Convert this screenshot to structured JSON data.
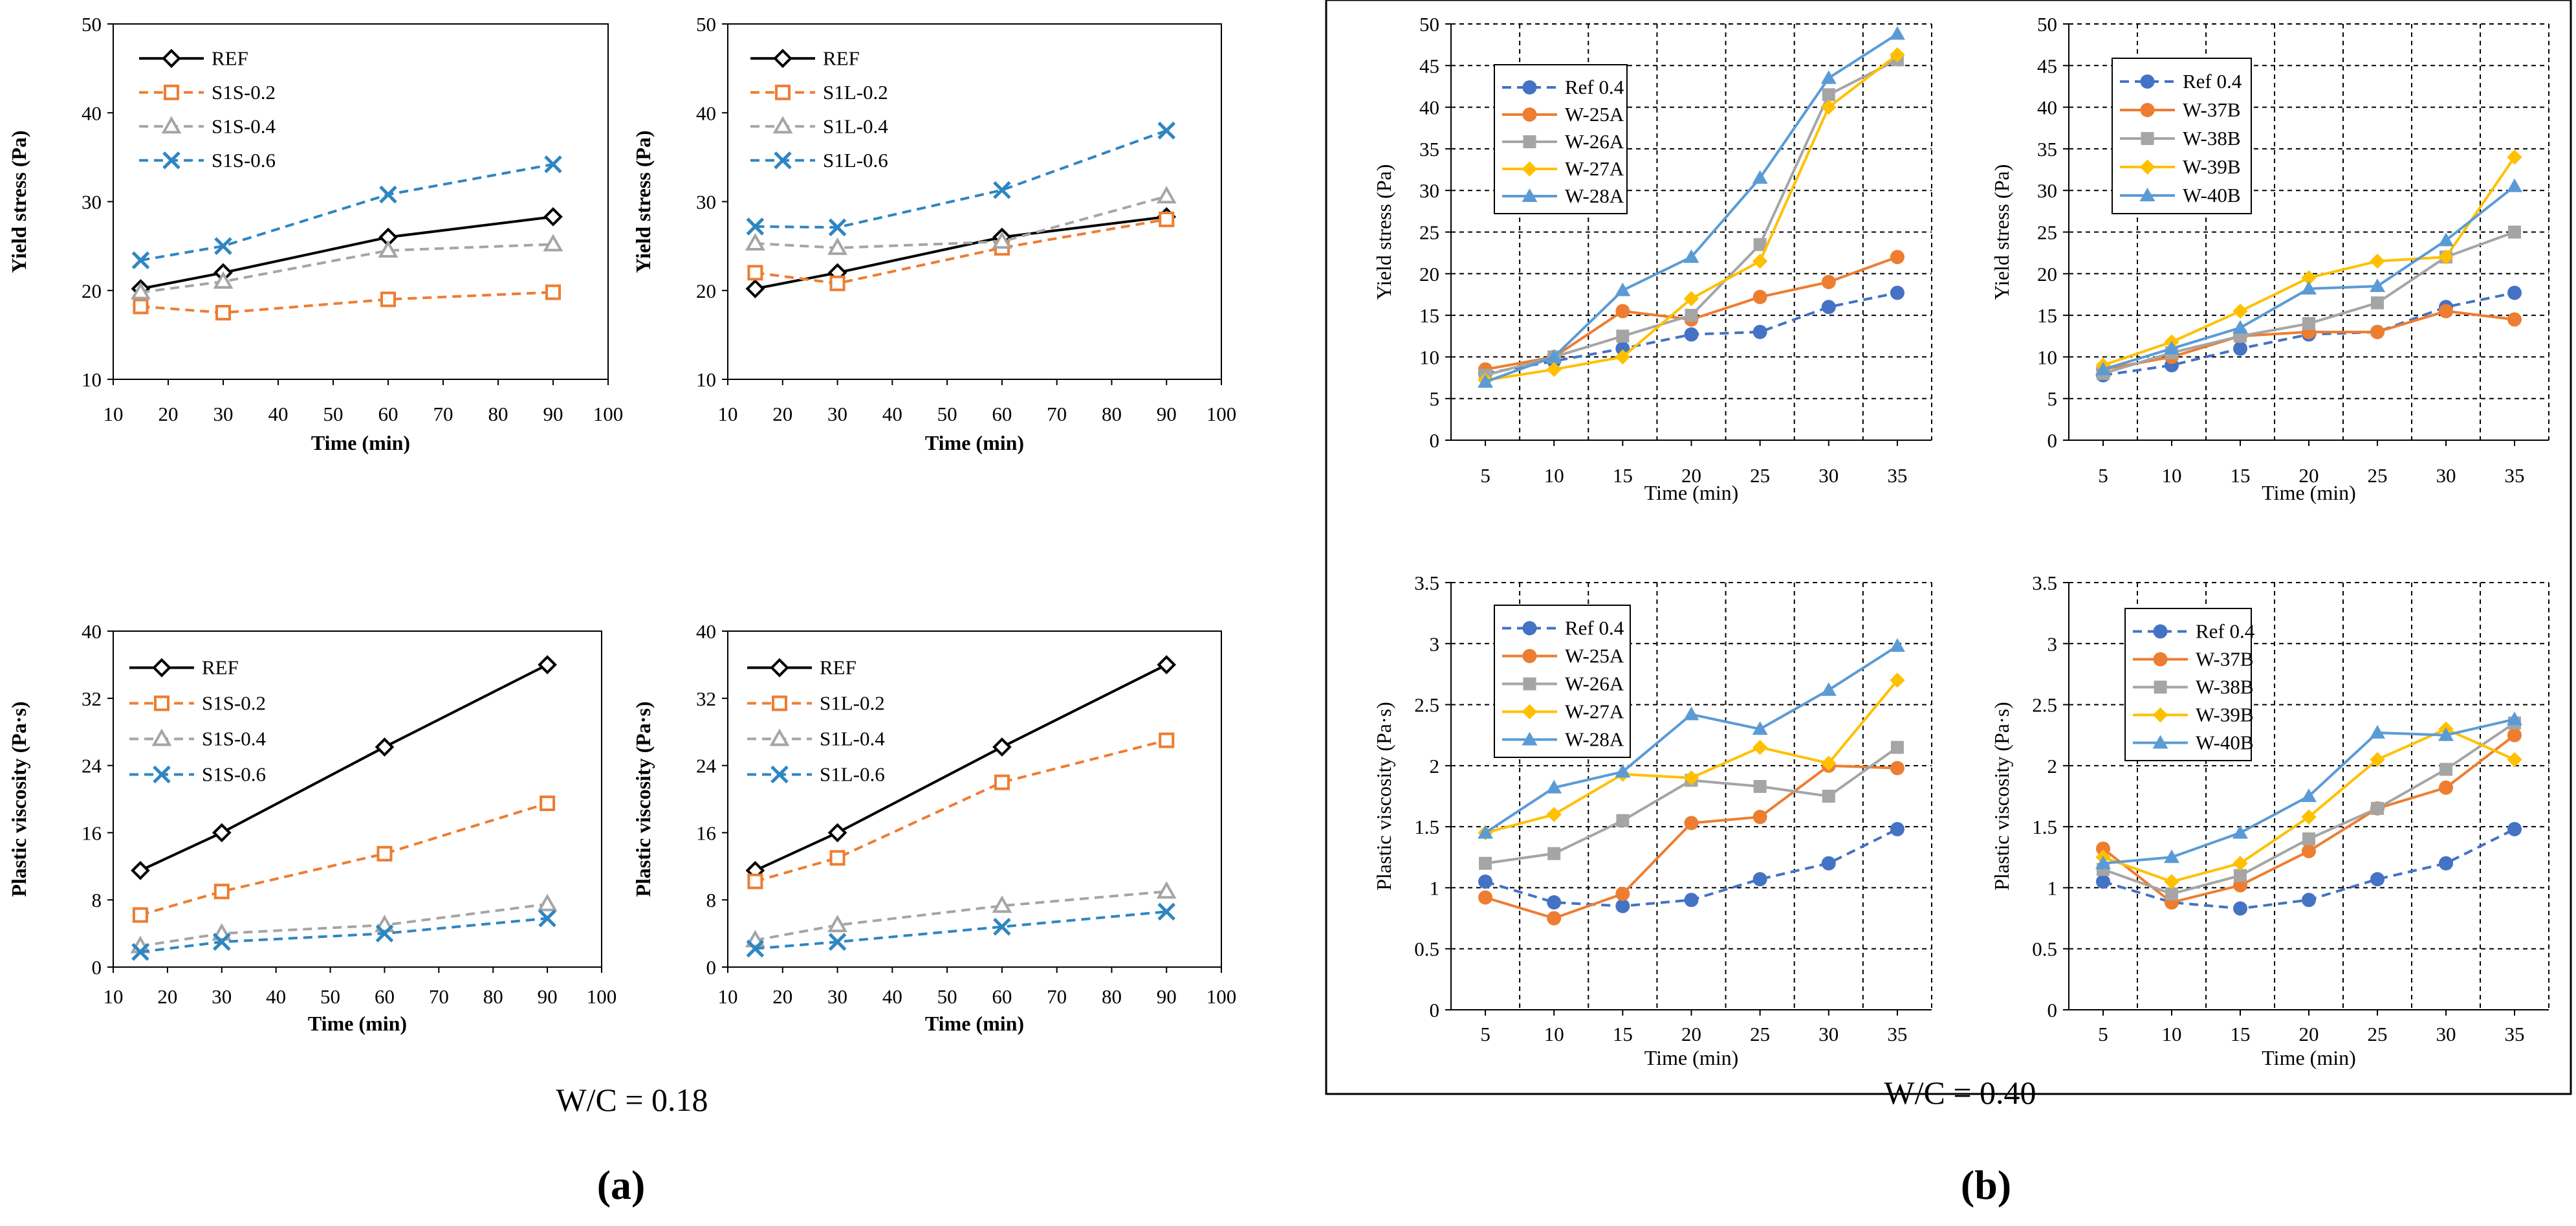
{
  "chart_data": [
    {
      "type": "line",
      "panel_id": "a-ys-s1s",
      "title": "",
      "xlabel": "Time (min)",
      "ylabel": "Yield stress (Pa)",
      "xlim": [
        10,
        100
      ],
      "ylim": [
        10,
        50
      ],
      "xticks": [
        "10",
        "20",
        "30",
        "40",
        "50",
        "60",
        "70",
        "80",
        "90",
        "100"
      ],
      "yticks": [
        "10",
        "20",
        "30",
        "40",
        "50"
      ],
      "grid": false,
      "legend_position": "top-left",
      "x": [
        15,
        30,
        60,
        90
      ],
      "series": [
        {
          "name": "REF",
          "values": [
            20.2,
            22.0,
            26.0,
            28.3
          ],
          "color": "#000000",
          "dash": "solid",
          "marker": "diamond"
        },
        {
          "name": "S1S-0.2",
          "values": [
            18.2,
            17.5,
            19.0,
            19.8
          ],
          "color": "#ed7d31",
          "dash": "dashed",
          "marker": "square"
        },
        {
          "name": "S1S-0.4",
          "values": [
            19.8,
            21.0,
            24.5,
            25.2
          ],
          "color": "#a5a5a5",
          "dash": "dashed",
          "marker": "triangle"
        },
        {
          "name": "S1S-0.6",
          "values": [
            23.4,
            25.0,
            30.8,
            34.2
          ],
          "color": "#2e86c1",
          "dash": "dashed",
          "marker": "x"
        }
      ]
    },
    {
      "type": "line",
      "panel_id": "a-ys-s1l",
      "title": "",
      "xlabel": "Time (min)",
      "ylabel": "Yield stress (Pa)",
      "xlim": [
        10,
        100
      ],
      "ylim": [
        10,
        50
      ],
      "xticks": [
        "10",
        "20",
        "30",
        "40",
        "50",
        "60",
        "70",
        "80",
        "90",
        "100"
      ],
      "yticks": [
        "10",
        "20",
        "30",
        "40",
        "50"
      ],
      "grid": false,
      "legend_position": "top-left",
      "x": [
        15,
        30,
        60,
        90
      ],
      "series": [
        {
          "name": "REF",
          "values": [
            20.2,
            22.0,
            26.0,
            28.3
          ],
          "color": "#000000",
          "dash": "solid",
          "marker": "diamond"
        },
        {
          "name": "S1L-0.2",
          "values": [
            22.0,
            20.8,
            24.8,
            28.0
          ],
          "color": "#ed7d31",
          "dash": "dashed",
          "marker": "square"
        },
        {
          "name": "S1L-0.4",
          "values": [
            25.3,
            24.8,
            25.5,
            30.6
          ],
          "color": "#a5a5a5",
          "dash": "dashed",
          "marker": "triangle"
        },
        {
          "name": "S1L-0.6",
          "values": [
            27.2,
            27.1,
            31.3,
            38.0
          ],
          "color": "#2e86c1",
          "dash": "dashed",
          "marker": "x"
        }
      ]
    },
    {
      "type": "line",
      "panel_id": "a-pv-s1s",
      "title": "",
      "xlabel": "Time (min)",
      "ylabel": "Plastic viscosity (Pa·s)",
      "xlim": [
        10,
        100
      ],
      "ylim": [
        0,
        40
      ],
      "xticks": [
        "10",
        "20",
        "30",
        "40",
        "50",
        "60",
        "70",
        "80",
        "90",
        "100"
      ],
      "yticks": [
        "0",
        "8",
        "16",
        "24",
        "32",
        "40"
      ],
      "grid": false,
      "legend_position": "top-left",
      "x": [
        15,
        30,
        60,
        90
      ],
      "series": [
        {
          "name": "REF",
          "values": [
            11.5,
            16.0,
            26.2,
            36.0
          ],
          "color": "#000000",
          "dash": "solid",
          "marker": "diamond"
        },
        {
          "name": "S1S-0.2",
          "values": [
            6.2,
            9.0,
            13.5,
            19.5
          ],
          "color": "#ed7d31",
          "dash": "dashed",
          "marker": "square"
        },
        {
          "name": "S1S-0.4",
          "values": [
            2.5,
            4.0,
            5.0,
            7.5
          ],
          "color": "#a5a5a5",
          "dash": "dashed",
          "marker": "triangle"
        },
        {
          "name": "S1S-0.6",
          "values": [
            1.8,
            3.0,
            4.0,
            5.8
          ],
          "color": "#2e86c1",
          "dash": "dashed",
          "marker": "x"
        }
      ]
    },
    {
      "type": "line",
      "panel_id": "a-pv-s1l",
      "title": "",
      "xlabel": "Time (min)",
      "ylabel": "Plastic viscosity (Pa·s)",
      "xlim": [
        10,
        100
      ],
      "ylim": [
        0,
        40
      ],
      "xticks": [
        "10",
        "20",
        "30",
        "40",
        "50",
        "60",
        "70",
        "80",
        "90",
        "100"
      ],
      "yticks": [
        "0",
        "8",
        "16",
        "24",
        "32",
        "40"
      ],
      "grid": false,
      "legend_position": "top-left",
      "x": [
        15,
        30,
        60,
        90
      ],
      "series": [
        {
          "name": "REF",
          "values": [
            11.5,
            16.0,
            26.2,
            36.0
          ],
          "color": "#000000",
          "dash": "solid",
          "marker": "diamond"
        },
        {
          "name": "S1L-0.2",
          "values": [
            10.2,
            13.0,
            22.0,
            27.0
          ],
          "color": "#ed7d31",
          "dash": "dashed",
          "marker": "square"
        },
        {
          "name": "S1L-0.4",
          "values": [
            3.2,
            5.0,
            7.3,
            9.0
          ],
          "color": "#a5a5a5",
          "dash": "dashed",
          "marker": "triangle"
        },
        {
          "name": "S1L-0.6",
          "values": [
            2.2,
            3.0,
            4.8,
            6.6
          ],
          "color": "#2e86c1",
          "dash": "dashed",
          "marker": "x"
        }
      ]
    },
    {
      "type": "line",
      "panel_id": "b-ys-a",
      "title": "",
      "xlabel": "Time (min)",
      "ylabel": "Yield stress (Pa)",
      "xlim": [
        2.5,
        37.5
      ],
      "ylim": [
        0,
        50
      ],
      "xticks": [
        "5",
        "10",
        "15",
        "20",
        "25",
        "30",
        "35"
      ],
      "yticks": [
        "0",
        "5",
        "10",
        "15",
        "20",
        "25",
        "30",
        "35",
        "40",
        "45",
        "50"
      ],
      "grid": true,
      "legend_position": "top-left",
      "x": [
        5,
        10,
        15,
        20,
        25,
        30,
        35
      ],
      "series": [
        {
          "name": "Ref 0.4",
          "values": [
            8.0,
            9.5,
            11.0,
            12.7,
            13.0,
            16.0,
            17.7
          ],
          "color": "#4472c4",
          "dash": "dashed",
          "marker": "circle"
        },
        {
          "name": "W-25A",
          "values": [
            8.5,
            10.0,
            15.5,
            14.5,
            17.2,
            19.0,
            22.0
          ],
          "color": "#ed7d31",
          "dash": "solid",
          "marker": "circle"
        },
        {
          "name": "W-26A",
          "values": [
            7.8,
            10.0,
            12.5,
            15.0,
            23.5,
            41.5,
            45.7
          ],
          "color": "#a5a5a5",
          "dash": "solid",
          "marker": "square"
        },
        {
          "name": "W-27A",
          "values": [
            7.2,
            8.5,
            10.0,
            17.0,
            21.5,
            40.0,
            46.3
          ],
          "color": "#ffc000",
          "dash": "solid",
          "marker": "diamond"
        },
        {
          "name": "W-28A",
          "values": [
            7.0,
            10.0,
            18.0,
            22.0,
            31.5,
            43.5,
            48.8
          ],
          "color": "#5b9bd5",
          "dash": "solid",
          "marker": "triangle"
        }
      ]
    },
    {
      "type": "line",
      "panel_id": "b-ys-b",
      "title": "",
      "xlabel": "Time (min)",
      "ylabel": "Yield stress (Pa)",
      "xlim": [
        2.5,
        37.5
      ],
      "ylim": [
        0,
        50
      ],
      "xticks": [
        "5",
        "10",
        "15",
        "20",
        "25",
        "30",
        "35"
      ],
      "yticks": [
        "0",
        "5",
        "10",
        "15",
        "20",
        "25",
        "30",
        "35",
        "40",
        "45",
        "50"
      ],
      "grid": true,
      "legend_position": "top-left",
      "x": [
        5,
        10,
        15,
        20,
        25,
        30,
        35
      ],
      "series": [
        {
          "name": "Ref 0.4",
          "values": [
            7.8,
            9.0,
            11.0,
            12.7,
            13.0,
            16.0,
            17.7
          ],
          "color": "#4472c4",
          "dash": "dashed",
          "marker": "circle"
        },
        {
          "name": "W-37B",
          "values": [
            8.5,
            10.0,
            12.5,
            13.0,
            13.0,
            15.5,
            14.5
          ],
          "color": "#ed7d31",
          "dash": "solid",
          "marker": "circle"
        },
        {
          "name": "W-38B",
          "values": [
            8.0,
            10.5,
            12.5,
            14.0,
            16.5,
            22.0,
            25.0
          ],
          "color": "#a5a5a5",
          "dash": "solid",
          "marker": "square"
        },
        {
          "name": "W-39B",
          "values": [
            9.0,
            11.8,
            15.5,
            19.5,
            21.5,
            22.0,
            34.0
          ],
          "color": "#ffc000",
          "dash": "solid",
          "marker": "diamond"
        },
        {
          "name": "W-40B",
          "values": [
            8.5,
            11.0,
            13.5,
            18.2,
            18.5,
            24.0,
            30.5
          ],
          "color": "#5b9bd5",
          "dash": "solid",
          "marker": "triangle"
        }
      ]
    },
    {
      "type": "line",
      "panel_id": "b-pv-a",
      "title": "",
      "xlabel": "Time (min)",
      "ylabel": "Plastic viscosity (Pa·s)",
      "xlim": [
        2.5,
        37.5
      ],
      "ylim": [
        0,
        3.5
      ],
      "xticks": [
        "5",
        "10",
        "15",
        "20",
        "25",
        "30",
        "35"
      ],
      "yticks": [
        "0",
        "0.5",
        "1",
        "1.5",
        "2",
        "2.5",
        "3",
        "3.5"
      ],
      "grid": true,
      "legend_position": "top-left",
      "x": [
        5,
        10,
        15,
        20,
        25,
        30,
        35
      ],
      "series": [
        {
          "name": "Ref 0.4",
          "values": [
            1.05,
            0.88,
            0.85,
            0.9,
            1.07,
            1.2,
            1.48
          ],
          "color": "#4472c4",
          "dash": "dashed",
          "marker": "circle"
        },
        {
          "name": "W-25A",
          "values": [
            0.92,
            0.75,
            0.95,
            1.53,
            1.58,
            2.0,
            1.98
          ],
          "color": "#ed7d31",
          "dash": "solid",
          "marker": "circle"
        },
        {
          "name": "W-26A",
          "values": [
            1.2,
            1.28,
            1.55,
            1.88,
            1.83,
            1.75,
            2.15
          ],
          "color": "#a5a5a5",
          "dash": "solid",
          "marker": "square"
        },
        {
          "name": "W-27A",
          "values": [
            1.45,
            1.6,
            1.93,
            1.9,
            2.15,
            2.02,
            2.7
          ],
          "color": "#ffc000",
          "dash": "solid",
          "marker": "diamond"
        },
        {
          "name": "W-28A",
          "values": [
            1.45,
            1.82,
            1.95,
            2.42,
            2.3,
            2.62,
            2.98
          ],
          "color": "#5b9bd5",
          "dash": "solid",
          "marker": "triangle"
        }
      ]
    },
    {
      "type": "line",
      "panel_id": "b-pv-b",
      "title": "",
      "xlabel": "Time (min)",
      "ylabel": "Plastic viscosity (Pa·s)",
      "xlim": [
        2.5,
        37.5
      ],
      "ylim": [
        0,
        3.5
      ],
      "xticks": [
        "5",
        "10",
        "15",
        "20",
        "25",
        "30",
        "35"
      ],
      "yticks": [
        "0",
        "0.5",
        "1",
        "1.5",
        "2",
        "2.5",
        "3",
        "3.5"
      ],
      "grid": true,
      "legend_position": "top-left",
      "x": [
        5,
        10,
        15,
        20,
        25,
        30,
        35
      ],
      "series": [
        {
          "name": "Ref 0.4",
          "values": [
            1.05,
            0.88,
            0.83,
            0.9,
            1.07,
            1.2,
            1.48
          ],
          "color": "#4472c4",
          "dash": "dashed",
          "marker": "circle"
        },
        {
          "name": "W-37B",
          "values": [
            1.32,
            0.88,
            1.02,
            1.3,
            1.65,
            1.82,
            2.25
          ],
          "color": "#ed7d31",
          "dash": "solid",
          "marker": "circle"
        },
        {
          "name": "W-38B",
          "values": [
            1.15,
            0.95,
            1.1,
            1.4,
            1.65,
            1.97,
            2.35
          ],
          "color": "#a5a5a5",
          "dash": "solid",
          "marker": "square"
        },
        {
          "name": "W-39B",
          "values": [
            1.25,
            1.05,
            1.2,
            1.58,
            2.05,
            2.3,
            2.05
          ],
          "color": "#ffc000",
          "dash": "solid",
          "marker": "diamond"
        },
        {
          "name": "W-40B",
          "values": [
            1.2,
            1.25,
            1.45,
            1.75,
            2.27,
            2.25,
            2.38
          ],
          "color": "#5b9bd5",
          "dash": "solid",
          "marker": "triangle"
        }
      ]
    }
  ],
  "captions": {
    "wc_a": "W/C = 0.18",
    "wc_b": "W/C = 0.40",
    "label_a": "(a)",
    "label_b": "(b)"
  }
}
